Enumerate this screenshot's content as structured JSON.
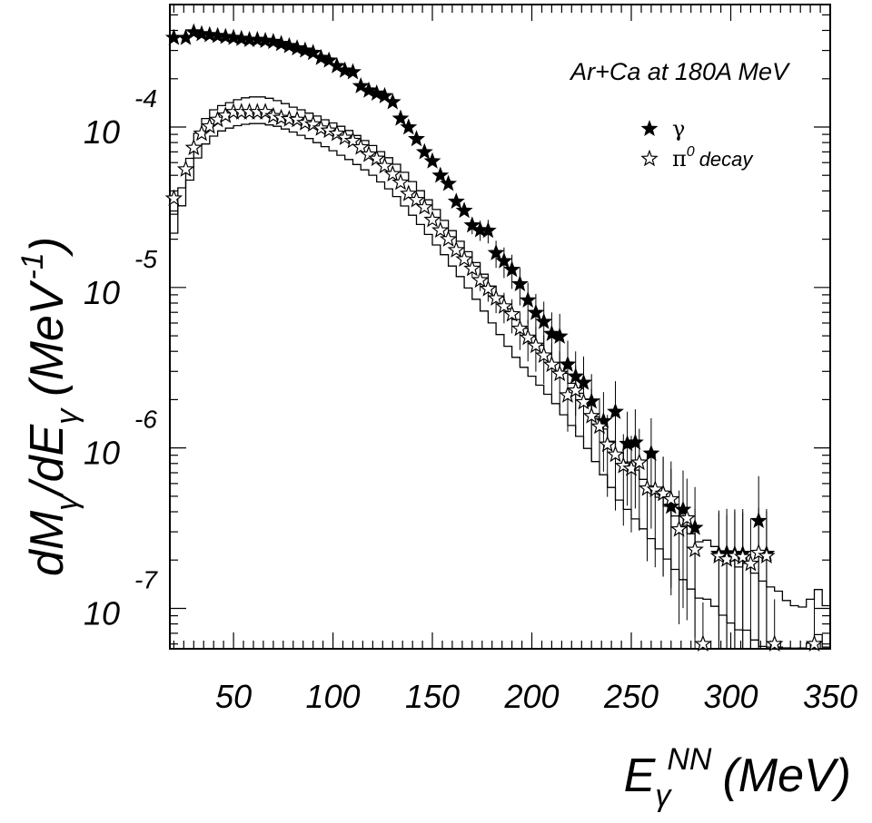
{
  "chart_data": {
    "type": "scatter",
    "annotation": "Ar+Ca at 180A MeV",
    "xlabel": {
      "base": "E",
      "sub": "γ",
      "sup": "NN",
      "unit": "(MeV)"
    },
    "ylabel": {
      "text": "dM",
      "sub1": "γ",
      "mid": "/dE",
      "sub2": "γ",
      "unit_pre": "(MeV",
      "unit_sup": "-1",
      "unit_post": ")"
    },
    "x_scale": "linear",
    "y_scale": "log",
    "xlim": [
      18,
      350
    ],
    "ylim": [
      5.6e-08,
      0.00058
    ],
    "x_ticks": [
      "50",
      "100",
      "150",
      "200",
      "250",
      "300",
      "350"
    ],
    "x_tick_values": [
      50,
      100,
      150,
      200,
      250,
      300,
      350
    ],
    "y_ticks": [
      {
        "base": "10",
        "exp": "-4",
        "value": 0.0001
      },
      {
        "base": "10",
        "exp": "-5",
        "value": 1e-05
      },
      {
        "base": "10",
        "exp": "-6",
        "value": 1e-06
      },
      {
        "base": "10",
        "exp": "-7",
        "value": 1e-07
      }
    ],
    "legend": {
      "placement": "top-right",
      "entries": [
        {
          "symbol": "filled-star",
          "label": "γ",
          "sub": "",
          "sup": ""
        },
        {
          "symbol": "open-star",
          "label": "π",
          "sup": "0",
          "rest": "decay"
        }
      ]
    },
    "series": [
      {
        "name": "γ",
        "marker": "filled-star",
        "x": [
          20,
          26,
          30,
          34,
          38,
          42,
          46,
          50,
          54,
          58,
          62,
          66,
          70,
          74,
          78,
          82,
          86,
          90,
          94,
          98,
          102,
          106,
          110,
          114,
          118,
          122,
          126,
          130,
          134,
          138,
          142,
          146,
          150,
          154,
          158,
          162,
          166,
          170,
          174,
          178,
          182,
          186,
          190,
          194,
          198,
          202,
          206,
          210,
          214,
          218,
          222,
          226,
          230,
          236,
          242,
          248,
          252,
          260,
          266,
          270,
          276,
          282,
          294,
          298,
          302,
          306,
          314,
          318
        ],
        "y": [
          0.00036,
          0.00036,
          0.00039,
          0.00038,
          0.000375,
          0.00037,
          0.000365,
          0.00036,
          0.000355,
          0.00035,
          0.00035,
          0.000345,
          0.00034,
          0.00033,
          0.00032,
          0.00031,
          0.0003,
          0.00029,
          0.00027,
          0.00026,
          0.00024,
          0.000225,
          0.00022,
          0.00018,
          0.000169,
          0.000162,
          0.000156,
          0.000143,
          0.000113,
          9.96e-05,
          8.42e-05,
          6.98e-05,
          6.12e-05,
          4.99e-05,
          4.43e-05,
          3.43e-05,
          3.01e-05,
          2.44e-05,
          2.28e-05,
          2.26e-05,
          1.64e-05,
          1.46e-05,
          1.29e-05,
          1.05e-05,
          8.32e-06,
          6.95e-06,
          6.11e-06,
          5.14e-06,
          4.95e-06,
          3.31e-06,
          2.79e-06,
          2.55e-06,
          1.95e-06,
          1.47e-06,
          1.68e-06,
          1.06e-06,
          1.08e-06,
          9.23e-07,
          5.19e-07,
          4.31e-07,
          4.12e-07,
          3.18e-07,
          2.19e-07,
          2.21e-07,
          2.18e-07,
          2.19e-07,
          3.51e-07,
          2.19e-07
        ]
      },
      {
        "name": "π0 decay",
        "marker": "open-star",
        "x": [
          20,
          26,
          30,
          34,
          38,
          42,
          46,
          50,
          54,
          58,
          62,
          66,
          70,
          74,
          78,
          82,
          86,
          90,
          94,
          98,
          102,
          106,
          110,
          114,
          118,
          122,
          126,
          130,
          134,
          138,
          142,
          146,
          150,
          154,
          158,
          162,
          166,
          170,
          174,
          178,
          182,
          186,
          190,
          194,
          198,
          202,
          206,
          210,
          214,
          218,
          222,
          226,
          230,
          234,
          238,
          242,
          246,
          250,
          254,
          258,
          262,
          266,
          270,
          274,
          278,
          282,
          286,
          294,
          298,
          302,
          306,
          310,
          314,
          318,
          322,
          342
        ],
        "y": [
          3.59e-05,
          5.45e-05,
          7.42e-05,
          9.11e-05,
          0.000101,
          0.000111,
          0.000118,
          0.000124,
          0.000124,
          0.000124,
          0.000124,
          0.000124,
          0.000117,
          0.000114,
          0.000112,
          0.000111,
          0.000106,
          0.000104,
          9.8e-05,
          9.5e-05,
          9.1e-05,
          8.58e-05,
          8.2e-05,
          7.48e-05,
          6.74e-05,
          6.35e-05,
          5.71e-05,
          5.09e-05,
          4.51e-05,
          3.84e-05,
          3.51e-05,
          3.16e-05,
          2.64e-05,
          2.27e-05,
          2e-05,
          1.71e-05,
          1.5e-05,
          1.31e-05,
          1.11e-05,
          9.8e-06,
          8.56e-06,
          7.63e-06,
          6.81e-06,
          5.54e-06,
          4.87e-06,
          4.34e-06,
          3.77e-06,
          3.3e-06,
          2.9e-06,
          2.13e-06,
          2.28e-06,
          1.93e-06,
          1.58e-06,
          1.36e-06,
          1.05e-06,
          9.09e-07,
          7.73e-07,
          7.43e-07,
          8.1e-07,
          5.59e-07,
          5.5e-07,
          5.19e-07,
          4.79e-07,
          3.11e-07,
          3.64e-07,
          2.32e-07,
          6e-08,
          2.12e-07,
          2.02e-07,
          2.12e-07,
          2.09e-07,
          1.9e-07,
          2.22e-07,
          2.12e-07,
          6e-08,
          6e-08
        ]
      }
    ],
    "histogram_bands": {
      "style": "step-line",
      "bin_width": 4,
      "upper": {
        "x": [
          18,
          22,
          26,
          30,
          34,
          38,
          42,
          46,
          50,
          54,
          58,
          62,
          66,
          70,
          74,
          78,
          82,
          86,
          90,
          94,
          98,
          102,
          106,
          110,
          114,
          118,
          122,
          126,
          130,
          134,
          138,
          142,
          146,
          150,
          154,
          158,
          162,
          166,
          170,
          174,
          178,
          182,
          186,
          190,
          194,
          198,
          202,
          206,
          210,
          214,
          218,
          222,
          226,
          230,
          234,
          238,
          242,
          246,
          250,
          254,
          258,
          262,
          266,
          270,
          274,
          278,
          282,
          286,
          290,
          294,
          298,
          302,
          306,
          310,
          314,
          318,
          322,
          326,
          330,
          334,
          338,
          342,
          346
        ],
        "y": [
          2.86e-05,
          4.18e-05,
          6.38e-05,
          9.14e-05,
          0.000113,
          0.000128,
          0.000136,
          0.000142,
          0.000148,
          0.000152,
          0.000154,
          0.000154,
          0.000151,
          0.000146,
          0.00014,
          0.000133,
          0.000128,
          0.000122,
          0.000117,
          0.000111,
          0.000106,
          0.000101,
          9.52e-05,
          8.86e-05,
          8.24e-05,
          7.67e-05,
          7.03e-05,
          6.44e-05,
          5.86e-05,
          5.22e-05,
          4.57e-05,
          4.01e-05,
          3.52e-05,
          3.06e-05,
          2.62e-05,
          2.26e-05,
          1.94e-05,
          1.67e-05,
          1.43e-05,
          1.21e-05,
          1.02e-05,
          8.71e-06,
          7.37e-06,
          6.32e-06,
          5.57e-06,
          4.93e-06,
          4.36e-06,
          3.85e-06,
          3.4e-06,
          2.92e-06,
          2.53e-06,
          2.19e-06,
          1.87e-06,
          1.56e-06,
          1.31e-06,
          1.1e-06,
          9.3e-07,
          8.18e-07,
          7.27e-07,
          6.37e-07,
          5.61e-07,
          4.93e-07,
          4.33e-07,
          3.77e-07,
          3.29e-07,
          2.92e-07,
          2.6e-07,
          2.66e-07,
          2.43e-07,
          2.19e-07,
          1.98e-07,
          1.81e-07,
          1.91e-07,
          1.66e-07,
          1.48e-07,
          1.36e-07,
          1.28e-07,
          1.12e-07,
          1.04e-07,
          1.02e-07,
          1.14e-07,
          1.31e-07,
          1.04e-07
        ]
      },
      "lower": {
        "x": [
          18,
          22,
          26,
          30,
          34,
          38,
          42,
          46,
          50,
          54,
          58,
          62,
          66,
          70,
          74,
          78,
          82,
          86,
          90,
          94,
          98,
          102,
          106,
          110,
          114,
          118,
          122,
          126,
          130,
          134,
          138,
          142,
          146,
          150,
          154,
          158,
          162,
          166,
          170,
          174,
          178,
          182,
          186,
          190,
          194,
          198,
          202,
          206,
          210,
          214,
          218,
          222,
          226,
          230,
          234,
          238,
          242,
          246,
          250,
          254,
          258,
          262,
          266,
          270,
          274,
          278,
          282,
          286,
          290,
          294,
          298,
          302,
          306,
          310,
          314,
          318,
          322,
          326,
          330,
          334,
          338,
          342,
          346
        ],
        "y": [
          2.18e-05,
          3.23e-05,
          4.67e-05,
          6.41e-05,
          7.84e-05,
          8.78e-05,
          9.46e-05,
          9.85e-05,
          0.000102,
          0.000104,
          0.000105,
          0.000105,
          0.000103,
          0.000101,
          9.72e-05,
          9.31e-05,
          8.88e-05,
          8.47e-05,
          7.99e-05,
          7.55e-05,
          7.12e-05,
          6.67e-05,
          6.27e-05,
          5.84e-05,
          5.41e-05,
          5.01e-05,
          4.55e-05,
          4.12e-05,
          3.69e-05,
          3.22e-05,
          2.82e-05,
          2.47e-05,
          2.14e-05,
          1.84e-05,
          1.6e-05,
          1.36e-05,
          1.17e-05,
          9.92e-06,
          8.45e-06,
          7.13e-06,
          6.01e-06,
          5.09e-06,
          4.3e-06,
          3.67e-06,
          3.18e-06,
          2.8e-06,
          2.46e-06,
          2.16e-06,
          1.89e-06,
          1.61e-06,
          1.38e-06,
          1.18e-06,
          9.93e-07,
          8.22e-07,
          6.81e-07,
          5.67e-07,
          4.73e-07,
          4.14e-07,
          3.61e-07,
          3.13e-07,
          2.72e-07,
          2.35e-07,
          2.03e-07,
          1.75e-07,
          1.51e-07,
          1.32e-07,
          1.16e-07,
          1.14e-07,
          1.03e-07,
          9.07e-08,
          8.11e-08,
          7.35e-08,
          7.31e-08,
          6.35e-08,
          5.79e-08,
          5.74e-08,
          5.73e-08,
          5.67e-08,
          5.65e-08,
          5.66e-08,
          6.07e-08,
          6.86e-08,
          5.73e-08
        ]
      }
    }
  }
}
